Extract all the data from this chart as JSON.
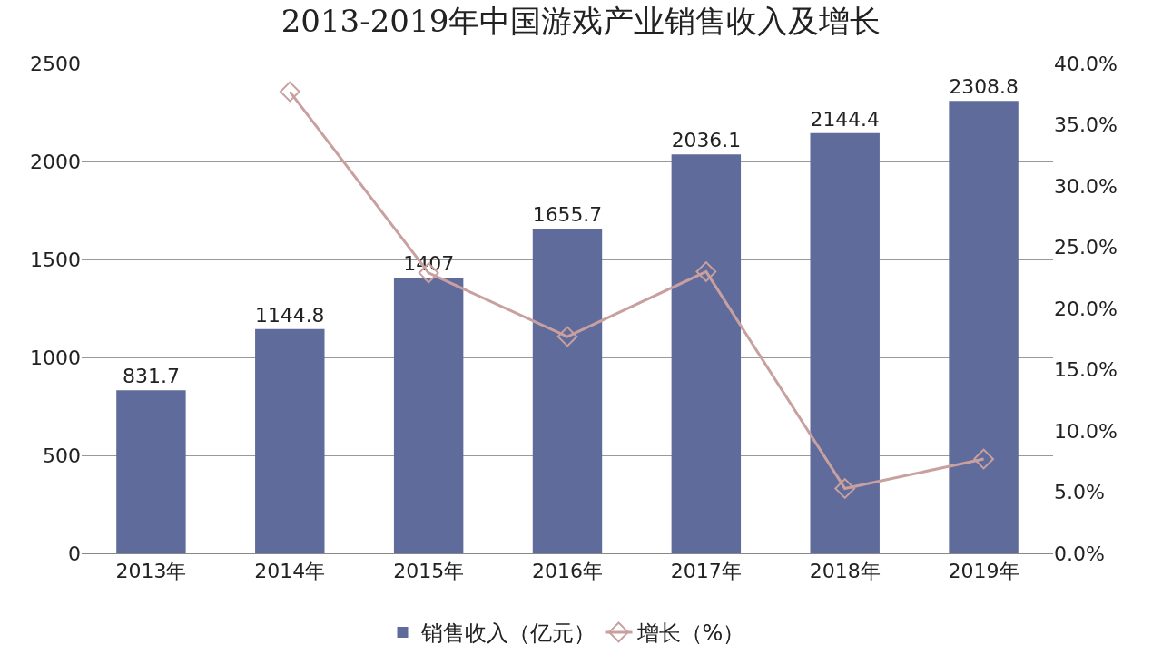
{
  "chart_data": {
    "type": "bar",
    "title": "2013-2019年中国游戏产业销售收入及增长",
    "categories": [
      "2013年",
      "2014年",
      "2015年",
      "2016年",
      "2017年",
      "2018年",
      "2019年"
    ],
    "series": [
      {
        "name": "销售收入（亿元）",
        "color": "#5f6b9a",
        "values": [
          831.7,
          1144.8,
          1407,
          1655.7,
          2036.1,
          2144.4,
          2308.8
        ],
        "data_labels": true
      },
      {
        "name": "增长（%）",
        "type": "line",
        "axis": "y2",
        "color": "#c9a0a0",
        "marker": "diamond",
        "values": [
          null,
          37.7,
          22.9,
          17.7,
          23.0,
          5.3,
          7.7
        ]
      }
    ],
    "ylim": [
      0,
      2500
    ],
    "yticks": [
      0,
      500,
      1000,
      1500,
      2000,
      2500
    ],
    "y2lim": [
      0,
      40
    ],
    "y2ticks": [
      {
        "value": 0,
        "label": "0.0%"
      },
      {
        "value": 5,
        "label": "5.0%"
      },
      {
        "value": 10,
        "label": "10.0%"
      },
      {
        "value": 15,
        "label": "15.0%"
      },
      {
        "value": 20,
        "label": "20.0%"
      },
      {
        "value": 25,
        "label": "25.0%"
      },
      {
        "value": 30,
        "label": "30.0%"
      },
      {
        "value": 35,
        "label": "35.0%"
      },
      {
        "value": 40,
        "label": "40.0%"
      }
    ],
    "grid": "y",
    "legend": "bottom"
  }
}
